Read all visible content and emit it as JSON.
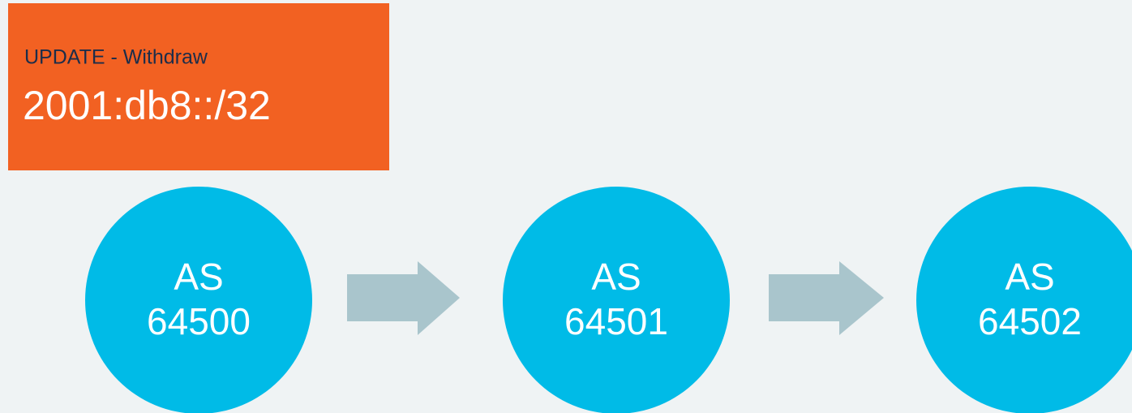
{
  "box": {
    "title": "UPDATE - Withdraw",
    "prefix": "2001:db8::/32"
  },
  "nodes": [
    {
      "lines": [
        "AS",
        "64500"
      ]
    },
    {
      "lines": [
        "AS",
        "64501"
      ]
    },
    {
      "lines": [
        "AS",
        "64502"
      ]
    }
  ]
}
